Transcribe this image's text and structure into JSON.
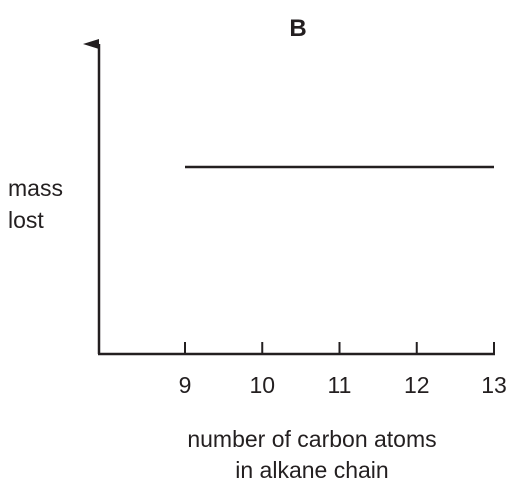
{
  "chart_data": {
    "type": "line",
    "title": "B",
    "ylabel": [
      "mass",
      "lost"
    ],
    "xlabel": [
      "number of carbon atoms",
      "in alkane chain"
    ],
    "x_ticks": [
      9,
      10,
      11,
      12,
      13
    ],
    "xlim": [
      8,
      13
    ],
    "y_ticks_labeled": false,
    "grid": false,
    "series": [
      {
        "x": [
          9,
          13
        ],
        "y": [
          1,
          1
        ]
      }
    ],
    "line_color": "#231f20"
  }
}
